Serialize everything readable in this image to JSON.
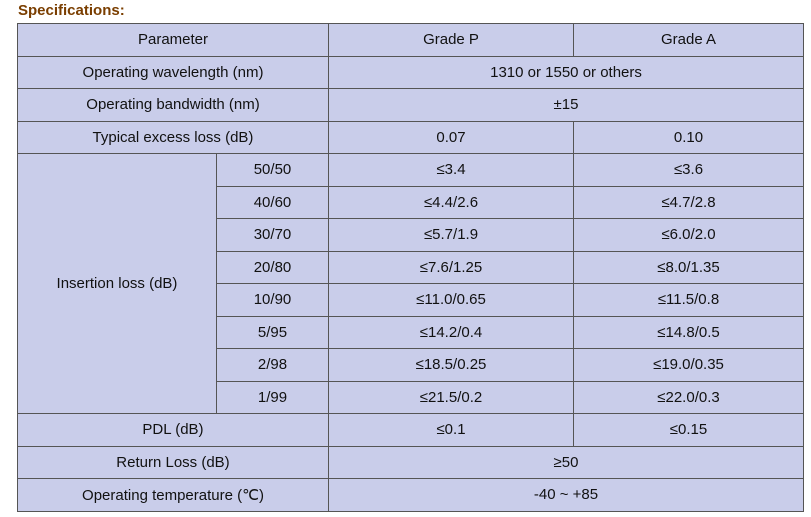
{
  "heading": "Specifications:",
  "table": {
    "header": [
      "Parameter",
      "Grade P",
      "Grade A"
    ],
    "rows": [
      [
        "Operating wavelength (nm)",
        "1310 or 1550 or others"
      ],
      [
        "Operating bandwidth (nm)",
        "±15"
      ],
      [
        "Typical excess loss (dB)",
        "0.07",
        "0.10"
      ]
    ],
    "insertion_loss": {
      "label": "Insertion loss (dB)",
      "rows": [
        [
          "50/50",
          "≤3.4",
          "≤3.6"
        ],
        [
          "40/60",
          "≤4.4/2.6",
          "≤4.7/2.8"
        ],
        [
          "30/70",
          "≤5.7/1.9",
          "≤6.0/2.0"
        ],
        [
          "20/80",
          "≤7.6/1.25",
          "≤8.0/1.35"
        ],
        [
          "10/90",
          "≤11.0/0.65",
          "≤11.5/0.8"
        ],
        [
          "5/95",
          "≤14.2/0.4",
          "≤14.8/0.5"
        ],
        [
          "2/98",
          "≤18.5/0.25",
          "≤19.0/0.35"
        ],
        [
          "1/99",
          "≤21.5/0.2",
          "≤22.0/0.3"
        ]
      ]
    },
    "footer_rows": [
      [
        "PDL (dB)",
        "≤0.1",
        "≤0.15"
      ],
      [
        "Return Loss (dB)",
        "≥50"
      ],
      [
        "Operating temperature (℃)",
        "-40 ~ +85"
      ]
    ]
  }
}
